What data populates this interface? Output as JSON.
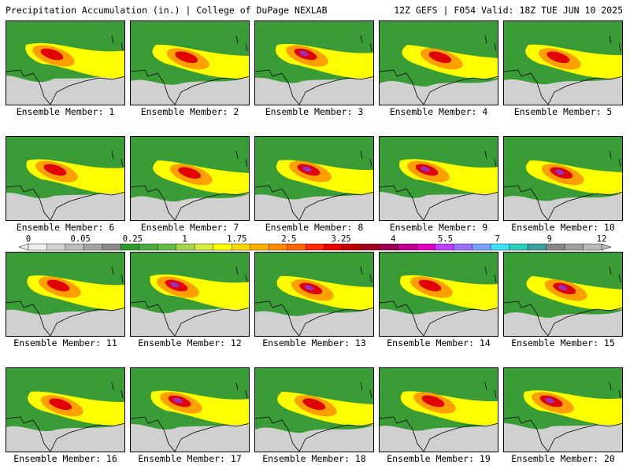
{
  "header": {
    "left": "Precipitation Accumulation (in.) | College of DuPage NEXLAB",
    "right": "12Z GEFS | F054 Valid: 18Z TUE JUN 10 2025"
  },
  "members": [
    {
      "label": "Ensemble Member: 1",
      "peak": "red"
    },
    {
      "label": "Ensemble Member: 2",
      "peak": "red"
    },
    {
      "label": "Ensemble Member: 3",
      "peak": "purple"
    },
    {
      "label": "Ensemble Member: 4",
      "peak": "red"
    },
    {
      "label": "Ensemble Member: 5",
      "peak": "red"
    },
    {
      "label": "Ensemble Member: 6",
      "peak": "red"
    },
    {
      "label": "Ensemble Member: 7",
      "peak": "red"
    },
    {
      "label": "Ensemble Member: 8",
      "peak": "purple"
    },
    {
      "label": "Ensemble Member: 9",
      "peak": "purple"
    },
    {
      "label": "Ensemble Member: 10",
      "peak": "purple"
    },
    {
      "label": "Ensemble Member: 11",
      "peak": "red"
    },
    {
      "label": "Ensemble Member: 12",
      "peak": "purple"
    },
    {
      "label": "Ensemble Member: 13",
      "peak": "purple"
    },
    {
      "label": "Ensemble Member: 14",
      "peak": "red"
    },
    {
      "label": "Ensemble Member: 15",
      "peak": "purple"
    },
    {
      "label": "Ensemble Member: 16",
      "peak": "red"
    },
    {
      "label": "Ensemble Member: 17",
      "peak": "purple"
    },
    {
      "label": "Ensemble Member: 18",
      "peak": "red"
    },
    {
      "label": "Ensemble Member: 19",
      "peak": "red"
    },
    {
      "label": "Ensemble Member: 20",
      "peak": "purple"
    }
  ],
  "colorbar": {
    "tick_labels": [
      "0",
      "0.05",
      "0.25",
      "1",
      "1.75",
      "2.5",
      "3.25",
      "4",
      "5.5",
      "7",
      "9",
      "12"
    ],
    "colors": [
      "#f0f0f0",
      "#d4d4d4",
      "#bcbcbc",
      "#a4a4a4",
      "#8c8c8c",
      "#2e9a2e",
      "#49ad3b",
      "#62bd44",
      "#a6d64a",
      "#d8ec40",
      "#ffff00",
      "#ffd800",
      "#ffb000",
      "#ff8c00",
      "#ff6400",
      "#ff2800",
      "#e80000",
      "#c00000",
      "#a00020",
      "#9a0050",
      "#c00090",
      "#e000c0",
      "#c040ff",
      "#9a70ff",
      "#7aa0ff",
      "#40e0ff",
      "#30d0c0",
      "#40a0a0",
      "#888888",
      "#a0a0a0",
      "#bbbbbb"
    ]
  },
  "legend_colors": {
    "light": "#d0d0d0",
    "green": "#3a9c36",
    "yellow": "#ffff00",
    "orange": "#ffa000",
    "red": "#e00000",
    "purple": "#9a30c0"
  }
}
